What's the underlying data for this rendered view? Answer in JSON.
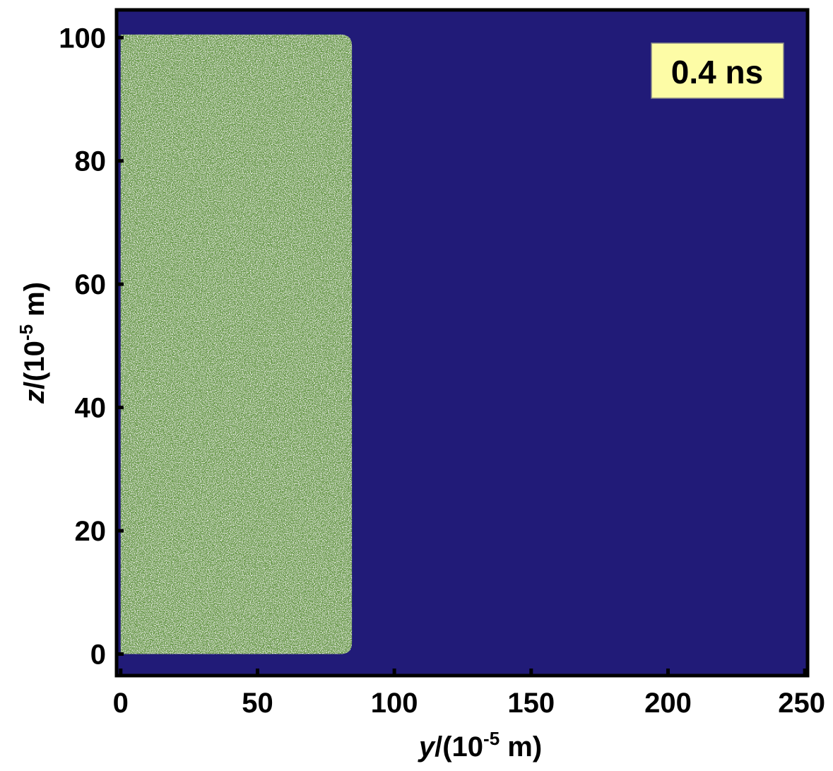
{
  "chart_data": {
    "type": "scatter",
    "title": "",
    "annotation": "0.4 ns",
    "xlabel": {
      "var": "y",
      "rest": "/(10",
      "exp": "-5",
      "unit": " m)"
    },
    "ylabel": {
      "var": "z",
      "rest": "/(10",
      "exp": "-5",
      "unit": " m)"
    },
    "xlim": [
      -1.5,
      251
    ],
    "ylim": [
      -3.5,
      104.5
    ],
    "xticks": [
      0,
      50,
      100,
      150,
      200,
      250
    ],
    "yticks": [
      0,
      20,
      40,
      60,
      80,
      100
    ],
    "grid": false,
    "series": [
      {
        "region": {
          "y_min": 0,
          "y_max": 84.5,
          "z_min": 0,
          "z_max": 100.5
        },
        "color": "#6a9a4a"
      }
    ],
    "colors": {
      "background": "#211b78",
      "badge_fill": "#fdfca6",
      "axis": "#000000"
    }
  }
}
